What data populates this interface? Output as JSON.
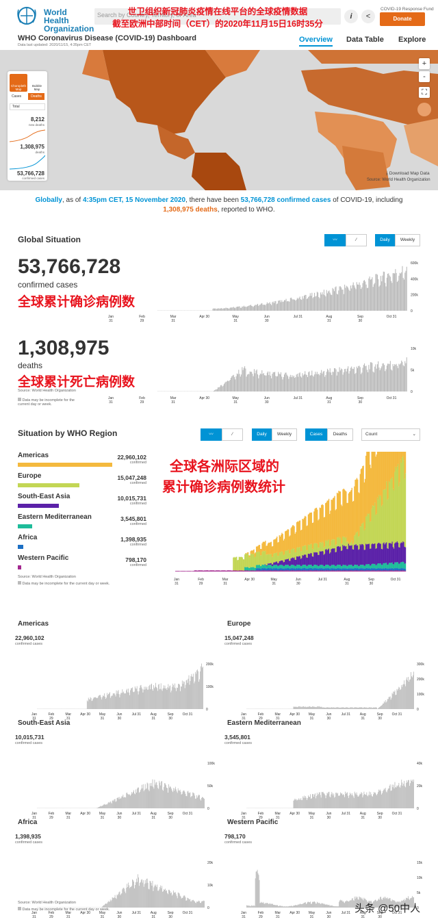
{
  "header": {
    "logo_text": "World Health Organization",
    "search_placeholder": "Search by Country, Territory, or Area",
    "overlay_line1": "世卫组织新冠肺炎疫情在线平台的全球疫情数据",
    "overlay_line2": "截至欧洲中部时间（CET）的2020年11月15日16时35分",
    "info_label": "i",
    "response_fund": "COVID-19 Response Fund",
    "donate": "Donate",
    "title": "WHO Coronavirus Disease (COVID-19) Dashboard",
    "updated": "Data last updated: 2020/11/15, 4:35pm CET",
    "nav": [
      "Overview",
      "Data Table",
      "Explore"
    ]
  },
  "map_panel": {
    "tab1": "Choropleth Map",
    "tab2": "Bubble Map",
    "sub1": "Cases",
    "sub2": "Deaths",
    "select": "Total",
    "v1": "8,212",
    "l1": "new deaths",
    "v2": "1,308,975",
    "l2": "deaths",
    "v3": "53,766,728",
    "l3": "confirmed cases"
  },
  "map": {
    "download": "Download Map Data",
    "source": "Source: World Health Organization",
    "zoom_in": "+",
    "zoom_out": "-"
  },
  "intro": {
    "p1": "Globally",
    "p2": ", as of ",
    "p3": "4:35pm CET, 15 November 2020",
    "p4": ", there have been ",
    "p5": "53,766,728 confirmed cases",
    "p6": " of COVID-19, including",
    "p7": "1,308,975 deaths",
    "p8": ", reported to WHO."
  },
  "global": {
    "title": "Global Situation",
    "daily": "Daily",
    "weekly": "Weekly",
    "cases_num": "53,766,728",
    "cases_label": "confirmed cases",
    "cases_anno": "全球累计确诊病例数",
    "deaths_num": "1,308,975",
    "deaths_label": "deaths",
    "deaths_anno": "全球累计死亡病例数",
    "source": "Source: World Health Organization",
    "note": "Data may be incomplete for the current day or week.",
    "cases_yticks": [
      "600k",
      "400k",
      "200k",
      "0"
    ],
    "deaths_yticks": [
      "10k",
      "5k",
      "0"
    ]
  },
  "region": {
    "title": "Situation by WHO Region",
    "daily": "Daily",
    "weekly": "Weekly",
    "cases": "Cases",
    "deaths": "Deaths",
    "select": "Count",
    "anno1": "全球各洲际区域的",
    "anno2": "累计确诊病例数统计",
    "sub": "confirmed",
    "source": "Source: World Health Organization",
    "note": "Data may be incomplete for the current day or week.",
    "items": [
      {
        "name": "Americas",
        "value": "22,960,102",
        "color": "#f4b93e",
        "share": 1.0
      },
      {
        "name": "Europe",
        "value": "15,047,248",
        "color": "#c3d655",
        "share": 0.655
      },
      {
        "name": "South-East Asia",
        "value": "10,015,731",
        "color": "#5b21a8",
        "share": 0.436
      },
      {
        "name": "Eastern Mediterranean",
        "value": "3,545,801",
        "color": "#1ebc9a",
        "share": 0.154
      },
      {
        "name": "Africa",
        "value": "1,398,935",
        "color": "#1c6fc4",
        "share": 0.061
      },
      {
        "name": "Western Pacific",
        "value": "798,170",
        "color": "#a3278f",
        "share": 0.035
      }
    ]
  },
  "xticks": [
    [
      "Jan",
      "31"
    ],
    [
      "Feb",
      "29"
    ],
    [
      "Mar",
      "31"
    ],
    [
      "Apr 30",
      ""
    ],
    [
      "May",
      "31"
    ],
    [
      "Jun",
      "30"
    ],
    [
      "Jul 31",
      ""
    ],
    [
      "Aug",
      "31"
    ],
    [
      "Sep",
      "30"
    ],
    [
      "Oct 31",
      ""
    ]
  ],
  "small": [
    {
      "name": "Americas",
      "value": "22,960,102",
      "sub": "confirmed cases",
      "yticks": [
        "200k",
        "100k",
        "0"
      ]
    },
    {
      "name": "Europe",
      "value": "15,047,248",
      "sub": "confirmed cases",
      "yticks": [
        "300k",
        "200k",
        "100k",
        "0"
      ]
    },
    {
      "name": "South-East Asia",
      "value": "10,015,731",
      "sub": "confirmed cases",
      "yticks": [
        "100k",
        "50k",
        "0"
      ]
    },
    {
      "name": "Eastern Mediterranean",
      "value": "3,545,801",
      "sub": "confirmed cases",
      "yticks": [
        "40k",
        "20k",
        "0"
      ]
    },
    {
      "name": "Africa",
      "value": "1,398,935",
      "sub": "confirmed cases",
      "yticks": [
        "20k",
        "10k",
        "0"
      ]
    },
    {
      "name": "Western Pacific",
      "value": "798,170",
      "sub": "confirmed cases",
      "yticks": [
        "15k",
        "10k",
        "5k",
        "0"
      ]
    }
  ],
  "footer": {
    "source": "Source: World Health Organization",
    "note": "Data may be incomplete for the current day or week.",
    "watermark": "头条 @50中人"
  },
  "colors": {
    "accent": "#0093d5",
    "brand": "#e46a17",
    "annotation": "#e8141e",
    "bar": "#b5b5b5"
  }
}
